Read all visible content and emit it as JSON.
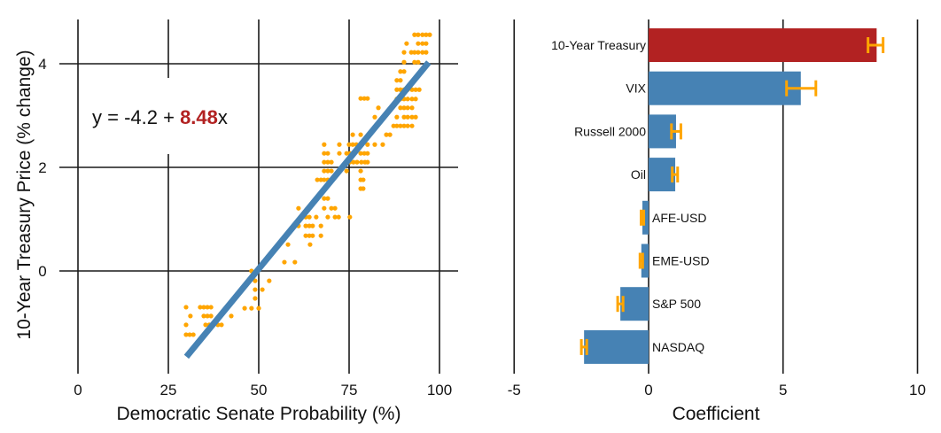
{
  "chart_data": [
    {
      "type": "scatter",
      "title": "",
      "xlabel": "Democratic Senate Probability (%)",
      "ylabel": "10-Year Treasury Price (% change)",
      "xlim": [
        -3,
        105
      ],
      "ylim": [
        -2.0,
        4.9
      ],
      "xticks": [
        0,
        25,
        50,
        75,
        100
      ],
      "xtick_labels": [
        "0",
        "25",
        "50",
        "75",
        "100"
      ],
      "yticks": [
        0,
        2,
        4
      ],
      "ytick_labels": [
        "0",
        "2",
        "4"
      ],
      "grid": true,
      "colors": {
        "points": "#ffa500",
        "fit_line": "#4682b4",
        "highlight": "#b22222"
      },
      "annotation": {
        "prefix": "y = -4.2 + ",
        "coef": "8.48",
        "suffix": "x"
      },
      "fit_line": {
        "intercept": -4.2,
        "slope_per_unit_probability": 8.48,
        "x_range": [
          30,
          97
        ]
      },
      "points": [
        [
          29.9,
          -0.7
        ],
        [
          33.8,
          -0.7
        ],
        [
          34.8,
          -0.7
        ],
        [
          35.8,
          -0.7
        ],
        [
          36.8,
          -0.7
        ],
        [
          31.1,
          -0.87
        ],
        [
          34.8,
          -0.87
        ],
        [
          35.8,
          -0.87
        ],
        [
          36.8,
          -0.87
        ],
        [
          42.4,
          -0.87
        ],
        [
          29.9,
          -1.04
        ],
        [
          35.3,
          -1.04
        ],
        [
          36.3,
          -1.04
        ],
        [
          37.3,
          -1.04
        ],
        [
          38.7,
          -1.04
        ],
        [
          39.7,
          -1.04
        ],
        [
          29.9,
          -1.23
        ],
        [
          30.9,
          -1.23
        ],
        [
          31.9,
          -1.23
        ],
        [
          48.0,
          0.0
        ],
        [
          49.0,
          -0.19
        ],
        [
          52.9,
          -0.19
        ],
        [
          49.0,
          -0.36
        ],
        [
          51.0,
          -0.36
        ],
        [
          49.0,
          -0.53
        ],
        [
          46.1,
          -0.72
        ],
        [
          48.0,
          -0.72
        ],
        [
          50.0,
          -0.72
        ],
        [
          57.1,
          0.17
        ],
        [
          60.0,
          0.17
        ],
        [
          58.1,
          0.51
        ],
        [
          64.2,
          0.51
        ],
        [
          63.0,
          0.68
        ],
        [
          64.0,
          0.68
        ],
        [
          64.9,
          0.68
        ],
        [
          67.2,
          0.68
        ],
        [
          61.0,
          0.87
        ],
        [
          63.0,
          0.87
        ],
        [
          64.0,
          0.87
        ],
        [
          64.9,
          0.87
        ],
        [
          67.2,
          0.87
        ],
        [
          63.0,
          1.04
        ],
        [
          64.0,
          1.04
        ],
        [
          65.9,
          1.04
        ],
        [
          69.1,
          1.04
        ],
        [
          71.1,
          1.04
        ],
        [
          72.1,
          1.04
        ],
        [
          75.2,
          1.04
        ],
        [
          61.0,
          1.21
        ],
        [
          68.1,
          1.21
        ],
        [
          70.1,
          1.21
        ],
        [
          71.1,
          1.21
        ],
        [
          68.1,
          1.4
        ],
        [
          69.1,
          1.4
        ],
        [
          78.2,
          1.59
        ],
        [
          78.9,
          1.59
        ],
        [
          66.2,
          1.76
        ],
        [
          67.2,
          1.76
        ],
        [
          68.1,
          1.76
        ],
        [
          69.1,
          1.76
        ],
        [
          78.2,
          1.76
        ],
        [
          78.9,
          1.76
        ],
        [
          68.1,
          1.93
        ],
        [
          69.1,
          1.93
        ],
        [
          70.1,
          1.93
        ],
        [
          74.3,
          1.93
        ],
        [
          78.2,
          1.93
        ],
        [
          68.1,
          2.1
        ],
        [
          69.1,
          2.1
        ],
        [
          70.1,
          2.1
        ],
        [
          75.2,
          2.1
        ],
        [
          76.2,
          2.1
        ],
        [
          77.2,
          2.1
        ],
        [
          78.4,
          2.1
        ],
        [
          79.4,
          2.1
        ],
        [
          80.1,
          2.1
        ],
        [
          68.1,
          2.27
        ],
        [
          69.1,
          2.27
        ],
        [
          72.3,
          2.27
        ],
        [
          74.3,
          2.27
        ],
        [
          75.2,
          2.27
        ],
        [
          78.2,
          2.27
        ],
        [
          79.2,
          2.27
        ],
        [
          80.1,
          2.27
        ],
        [
          68.1,
          2.44
        ],
        [
          72.3,
          2.44
        ],
        [
          75.0,
          2.44
        ],
        [
          76.0,
          2.44
        ],
        [
          77.0,
          2.44
        ],
        [
          78.2,
          2.44
        ],
        [
          80.1,
          2.44
        ],
        [
          82.1,
          2.44
        ],
        [
          84.3,
          2.44
        ],
        [
          76.0,
          2.63
        ],
        [
          78.2,
          2.63
        ],
        [
          85.3,
          2.63
        ],
        [
          86.3,
          2.63
        ],
        [
          87.3,
          2.8
        ],
        [
          88.2,
          2.8
        ],
        [
          89.2,
          2.8
        ],
        [
          90.2,
          2.8
        ],
        [
          91.2,
          2.8
        ],
        [
          92.4,
          2.8
        ],
        [
          82.1,
          2.97
        ],
        [
          88.2,
          2.97
        ],
        [
          90.2,
          2.97
        ],
        [
          91.2,
          2.97
        ],
        [
          92.4,
          2.97
        ],
        [
          93.4,
          2.97
        ],
        [
          83.1,
          3.15
        ],
        [
          89.2,
          3.15
        ],
        [
          90.2,
          3.15
        ],
        [
          91.2,
          3.15
        ],
        [
          92.4,
          3.15
        ],
        [
          78.2,
          3.33
        ],
        [
          79.2,
          3.33
        ],
        [
          80.1,
          3.33
        ],
        [
          88.2,
          3.32
        ],
        [
          89.2,
          3.32
        ],
        [
          90.2,
          3.32
        ],
        [
          91.2,
          3.32
        ],
        [
          92.4,
          3.32
        ],
        [
          93.4,
          3.32
        ],
        [
          88.2,
          3.5
        ],
        [
          89.2,
          3.5
        ],
        [
          90.2,
          3.5
        ],
        [
          91.2,
          3.5
        ],
        [
          92.4,
          3.5
        ],
        [
          93.4,
          3.5
        ],
        [
          94.4,
          3.5
        ],
        [
          88.2,
          3.68
        ],
        [
          89.2,
          3.68
        ],
        [
          89.2,
          3.85
        ],
        [
          90.2,
          3.85
        ],
        [
          90.2,
          4.03
        ],
        [
          93.1,
          4.03
        ],
        [
          94.1,
          4.03
        ],
        [
          90.2,
          4.22
        ],
        [
          92.2,
          4.22
        ],
        [
          93.1,
          4.22
        ],
        [
          94.1,
          4.22
        ],
        [
          95.3,
          4.22
        ],
        [
          96.3,
          4.22
        ],
        [
          90.9,
          4.39
        ],
        [
          94.1,
          4.39
        ],
        [
          95.3,
          4.39
        ],
        [
          96.3,
          4.39
        ],
        [
          93.1,
          4.56
        ],
        [
          94.1,
          4.56
        ],
        [
          95.3,
          4.56
        ],
        [
          96.3,
          4.56
        ],
        [
          97.3,
          4.56
        ]
      ]
    },
    {
      "type": "bar",
      "orientation": "horizontal",
      "title": "",
      "xlabel": "Coefficient",
      "ylabel": "",
      "xlim": [
        -5.5,
        10.3
      ],
      "xticks": [
        -5,
        0,
        5,
        10
      ],
      "xtick_labels": [
        "-5",
        "0",
        "5",
        "10"
      ],
      "grid": true,
      "categories": [
        "10-Year Treasury",
        "VIX",
        "Russell 2000",
        "Oil",
        "AFE-USD",
        "EME-USD",
        "S&P 500",
        "NASDAQ"
      ],
      "values": [
        8.48,
        5.66,
        1.02,
        0.99,
        -0.23,
        -0.27,
        -1.05,
        -2.4
      ],
      "error_low": [
        8.16,
        5.13,
        0.85,
        0.88,
        -0.28,
        -0.32,
        -1.15,
        -2.5
      ],
      "error_high": [
        8.72,
        6.22,
        1.2,
        1.08,
        -0.18,
        -0.22,
        -0.95,
        -2.3
      ],
      "bar_colors": [
        "#b22222",
        "#4682b4",
        "#4682b4",
        "#4682b4",
        "#4682b4",
        "#4682b4",
        "#4682b4",
        "#4682b4"
      ],
      "error_color": "#ffa500"
    }
  ]
}
